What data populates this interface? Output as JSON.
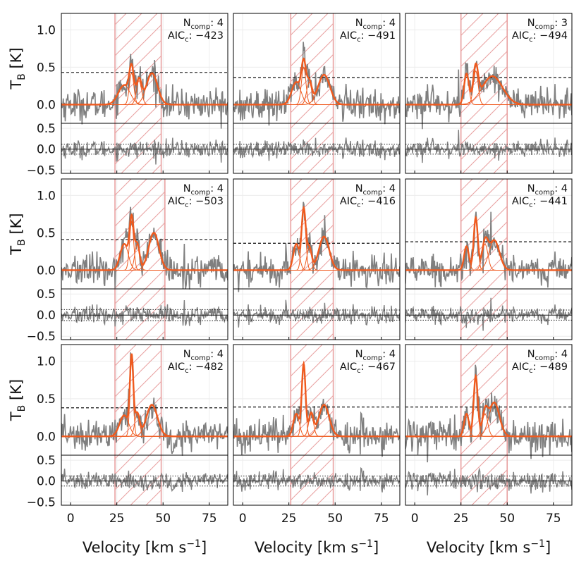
{
  "chart_data": {
    "type": "line",
    "layout": "3x3 grid of spectral fit panels, each with a residual sub-panel",
    "xlabel": "Velocity [km s−1]",
    "ylabel": "TB [K]",
    "xlim": [
      -5,
      85
    ],
    "ylim_main": [
      -0.25,
      1.22
    ],
    "ylim_resid": [
      -0.58,
      0.62
    ],
    "xticks": [
      0,
      25,
      50,
      75
    ],
    "yticks_main": [
      "0.0",
      "0.5",
      "1.0"
    ],
    "yticks_resid": [
      "−0.5",
      "0.0",
      "0.5"
    ],
    "ncomp_label": "N",
    "ncomp_sub": "comp",
    "aicc_label": "AIC",
    "aicc_sub": "c",
    "colors": {
      "data": "#7f7f7f",
      "fit": "#f05a1e",
      "component": "#f05a1e",
      "hatch": "#e8a0a0",
      "threshold": "#111111",
      "grid": "#ececec"
    },
    "panels": [
      {
        "row": 0,
        "col": 0,
        "ncomp": "4",
        "aicc": "−423",
        "window": [
          24,
          49
        ],
        "threshold": 0.43,
        "resid_band": 0.12,
        "components": [
          {
            "amp": 0.26,
            "mu": 29,
            "sigma": 3.2
          },
          {
            "amp": 0.42,
            "mu": 33,
            "sigma": 1.2
          },
          {
            "amp": 0.32,
            "mu": 37,
            "sigma": 1.4
          },
          {
            "amp": 0.42,
            "mu": 44,
            "sigma": 3.0
          }
        ]
      },
      {
        "row": 0,
        "col": 1,
        "ncomp": "4",
        "aicc": "−491",
        "window": [
          26,
          49
        ],
        "threshold": 0.36,
        "resid_band": 0.12,
        "components": [
          {
            "amp": 0.3,
            "mu": 29,
            "sigma": 2.5
          },
          {
            "amp": 0.5,
            "mu": 33,
            "sigma": 1.2
          },
          {
            "amp": 0.3,
            "mu": 36,
            "sigma": 1.4
          },
          {
            "amp": 0.4,
            "mu": 44,
            "sigma": 3.2
          }
        ]
      },
      {
        "row": 0,
        "col": 2,
        "ncomp": "3",
        "aicc": "−494",
        "window": [
          25,
          50
        ],
        "threshold": 0.36,
        "resid_band": 0.12,
        "components": [
          {
            "amp": 0.4,
            "mu": 28,
            "sigma": 1.3
          },
          {
            "amp": 0.45,
            "mu": 33,
            "sigma": 1.3
          },
          {
            "amp": 0.38,
            "mu": 42,
            "sigma": 5.5
          }
        ]
      },
      {
        "row": 1,
        "col": 0,
        "ncomp": "4",
        "aicc": "−503",
        "window": [
          24,
          51
        ],
        "threshold": 0.41,
        "resid_band": 0.13,
        "components": [
          {
            "amp": 0.35,
            "mu": 29,
            "sigma": 2.2
          },
          {
            "amp": 0.65,
            "mu": 33,
            "sigma": 1.1
          },
          {
            "amp": 0.35,
            "mu": 36,
            "sigma": 1.3
          },
          {
            "amp": 0.5,
            "mu": 45,
            "sigma": 2.8
          }
        ]
      },
      {
        "row": 1,
        "col": 1,
        "ncomp": "4",
        "aicc": "−416",
        "window": [
          26,
          49
        ],
        "threshold": 0.36,
        "resid_band": 0.12,
        "components": [
          {
            "amp": 0.35,
            "mu": 29,
            "sigma": 1.6
          },
          {
            "amp": 0.8,
            "mu": 33,
            "sigma": 1.1
          },
          {
            "amp": 0.3,
            "mu": 36,
            "sigma": 1.3
          },
          {
            "amp": 0.45,
            "mu": 44,
            "sigma": 2.8
          }
        ]
      },
      {
        "row": 1,
        "col": 2,
        "ncomp": "4",
        "aicc": "−441",
        "window": [
          25,
          50
        ],
        "threshold": 0.38,
        "resid_band": 0.12,
        "components": [
          {
            "amp": 0.32,
            "mu": 28,
            "sigma": 1.3
          },
          {
            "amp": 0.7,
            "mu": 33,
            "sigma": 1.1
          },
          {
            "amp": 0.35,
            "mu": 38,
            "sigma": 1.6
          },
          {
            "amp": 0.4,
            "mu": 43,
            "sigma": 2.8
          }
        ]
      },
      {
        "row": 2,
        "col": 0,
        "ncomp": "4",
        "aicc": "−482",
        "window": [
          24,
          49
        ],
        "threshold": 0.38,
        "resid_band": 0.12,
        "components": [
          {
            "amp": 0.28,
            "mu": 29,
            "sigma": 2.5
          },
          {
            "amp": 1.0,
            "mu": 33,
            "sigma": 0.9
          },
          {
            "amp": 0.3,
            "mu": 36,
            "sigma": 1.3
          },
          {
            "amp": 0.42,
            "mu": 44,
            "sigma": 3.0
          }
        ]
      },
      {
        "row": 2,
        "col": 1,
        "ncomp": "4",
        "aicc": "−467",
        "window": [
          26,
          49
        ],
        "threshold": 0.39,
        "resid_band": 0.12,
        "components": [
          {
            "amp": 0.3,
            "mu": 29,
            "sigma": 1.6
          },
          {
            "amp": 0.95,
            "mu": 33,
            "sigma": 1.0
          },
          {
            "amp": 0.3,
            "mu": 37,
            "sigma": 1.3
          },
          {
            "amp": 0.42,
            "mu": 44,
            "sigma": 2.8
          }
        ]
      },
      {
        "row": 2,
        "col": 2,
        "ncomp": "4",
        "aicc": "−489",
        "window": [
          25,
          50
        ],
        "threshold": 0.39,
        "resid_band": 0.12,
        "components": [
          {
            "amp": 0.3,
            "mu": 28,
            "sigma": 1.3
          },
          {
            "amp": 0.8,
            "mu": 33,
            "sigma": 1.1
          },
          {
            "amp": 0.3,
            "mu": 38,
            "sigma": 1.5
          },
          {
            "amp": 0.45,
            "mu": 43,
            "sigma": 2.8
          }
        ]
      }
    ]
  }
}
